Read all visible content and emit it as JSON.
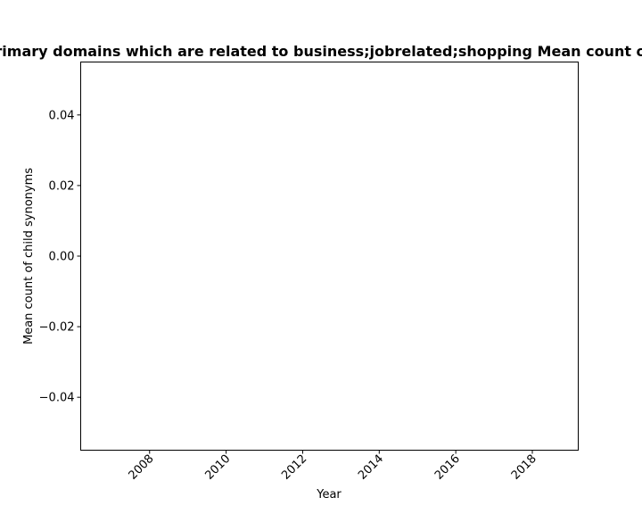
{
  "chart_data": {
    "type": "line",
    "title": "Mean count of child synonyms in primary domains which are related to business;jobrelated;shopping Mean count of child synonyms in primary domains",
    "xlabel": "Year",
    "ylabel": "Mean count of child synonyms",
    "xlim": [
      2006.2,
      2019.2
    ],
    "ylim": [
      -0.055,
      0.055
    ],
    "x_ticks": [
      2008,
      2010,
      2012,
      2014,
      2016,
      2018
    ],
    "x_tick_labels": [
      "2008",
      "2010",
      "2012",
      "2014",
      "2016",
      "2018"
    ],
    "y_ticks": [
      0.04,
      0.02,
      0.0,
      -0.02,
      -0.04
    ],
    "y_tick_labels": [
      "0.04",
      "0.02",
      "0.00",
      "−0.02",
      "−0.04"
    ],
    "series": [],
    "grid": false,
    "legend": "none"
  }
}
